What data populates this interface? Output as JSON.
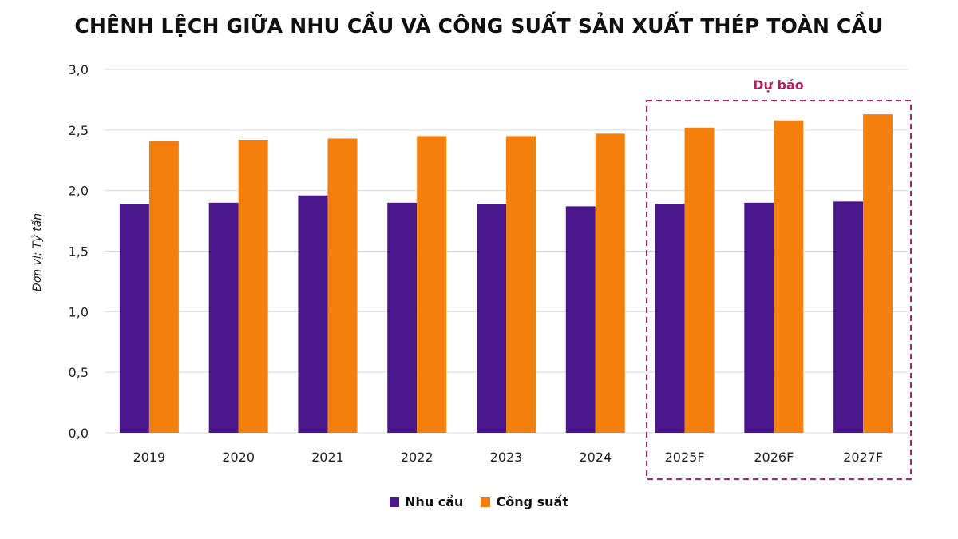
{
  "colors": {
    "demand": "#4a168c",
    "capacity": "#f57f0c",
    "forecast_box": "#b0245e",
    "grid": "#d9d9d9"
  },
  "chart_data": {
    "type": "bar",
    "title": "CHÊNH LỆCH GIỮA NHU CẦU VÀ CÔNG SUẤT SẢN XUẤT THÉP TOÀN CẦU",
    "ylabel": "Đơn vị: Tỷ tấn",
    "xlabel": "",
    "ylim": [
      0,
      3.0
    ],
    "yticks": [
      "0,0",
      "0,5",
      "1,0",
      "1,5",
      "2,0",
      "2,5",
      "3,0"
    ],
    "grid": true,
    "legend_position": "bottom",
    "categories": [
      "2019",
      "2020",
      "2021",
      "2022",
      "2023",
      "2024",
      "2025F",
      "2026F",
      "2027F"
    ],
    "series": [
      {
        "name": "Nhu cầu",
        "values": [
          1.89,
          1.9,
          1.96,
          1.9,
          1.89,
          1.87,
          1.89,
          1.9,
          1.91
        ]
      },
      {
        "name": "Công suất",
        "values": [
          2.41,
          2.42,
          2.43,
          2.45,
          2.45,
          2.47,
          2.52,
          2.58,
          2.63
        ]
      }
    ],
    "forecast_annotation": "Dự báo"
  }
}
